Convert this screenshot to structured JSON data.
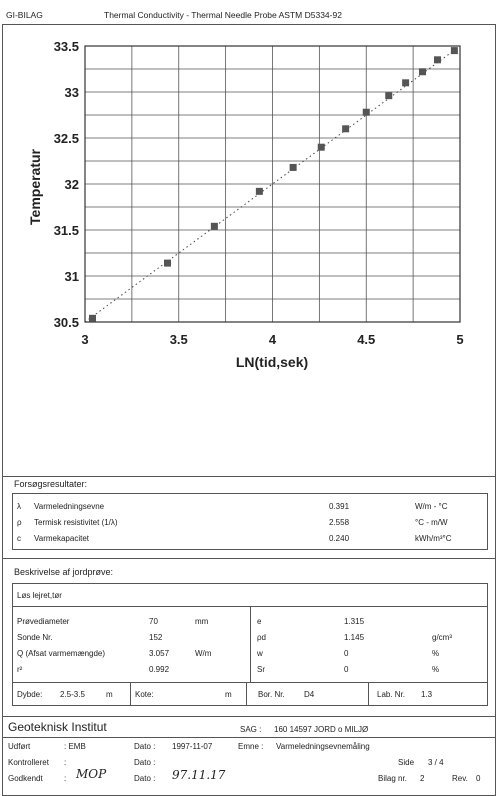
{
  "header": {
    "left": "GI-BILAG",
    "title": "Thermal Conductivity - Thermal Needle Probe ASTM D5334-92"
  },
  "chart_data": {
    "type": "scatter",
    "xlabel": "LN(tid,sek)",
    "ylabel": "Temperatur",
    "xlim": [
      3,
      5
    ],
    "ylim": [
      30.5,
      33.5
    ],
    "xticks": [
      "3",
      "3.5",
      "4",
      "4.5",
      "5"
    ],
    "yticks": [
      "30.5",
      "31",
      "31.5",
      "32",
      "32.5",
      "33",
      "33.5"
    ],
    "grid": true,
    "x": [
      3.04,
      3.44,
      3.69,
      3.93,
      4.11,
      4.26,
      4.39,
      4.5,
      4.62,
      4.71,
      4.8,
      4.88,
      4.97
    ],
    "y": [
      30.54,
      31.14,
      31.54,
      31.92,
      32.18,
      32.4,
      32.6,
      32.78,
      32.96,
      33.1,
      33.22,
      33.35,
      33.45
    ],
    "trendline": {
      "style": "dotted",
      "from": [
        3.0,
        30.5
      ],
      "to": [
        4.98,
        33.47
      ]
    }
  },
  "results": {
    "heading": "Forsøgsresultater:",
    "rows": [
      {
        "symbol": "λ",
        "label": "Varmeledningsevne",
        "value": "0.391",
        "unit": "W/m - °C"
      },
      {
        "symbol": "ρ",
        "label": "Termisk resistivitet (1/λ)",
        "value": "2.558",
        "unit": "°C - m/W"
      },
      {
        "symbol": "c",
        "label": "Varmekapacitet",
        "value": "0.240",
        "unit": "kWh/m³°C"
      }
    ]
  },
  "sample": {
    "heading": "Beskrivelse af jordprøve:",
    "description": "Løs lejret,tør",
    "left_rows": [
      {
        "label": "Prøvediameter",
        "value": "70",
        "unit": "mm"
      },
      {
        "label": "Sonde Nr.",
        "value": "152",
        "unit": ""
      },
      {
        "label": "Q (Afsat varmemængde)",
        "value": "3.057",
        "unit": "W/m"
      },
      {
        "label": "r²",
        "value": "0.992",
        "unit": ""
      }
    ],
    "right_rows": [
      {
        "label": "e",
        "value": "1.315",
        "unit": ""
      },
      {
        "label": "ρd",
        "value": "1.145",
        "unit": "g/cm³"
      },
      {
        "label": "w",
        "value": "0",
        "unit": "%"
      },
      {
        "label": "Sr",
        "value": "0",
        "unit": "%"
      }
    ],
    "footer": {
      "dybde_label": "Dybde:",
      "dybde_value": "2.5-3.5",
      "dybde_unit": "m",
      "kote_label": "Kote:",
      "kote_unit": "m",
      "bor_label": "Bor. Nr.",
      "bor_value": "D4",
      "lab_label": "Lab. Nr.",
      "lab_value": "1.3"
    }
  },
  "titleblock": {
    "institute": "Geoteknisk Institut",
    "sag_label": "SAG :",
    "sag_value": "160 14597 JORD o MILJØ",
    "udfort_label": "Udført",
    "udfort_value": ": EMB",
    "kontrolleret_label": "Kontrolleret",
    "kontrolleret_value": ":",
    "godkendt_label": "Godkendt",
    "godkendt_value": ":",
    "godkendt_sig": "MOP",
    "dato_label": "Dato :",
    "dato1": "1997-11-07",
    "dato3_sig": "97.11.17",
    "emne_label": "Emne :",
    "emne_value": "Varmeledningsevnemåling",
    "side_label": "Side",
    "side_value": "3 / 4",
    "bilag_label": "Bilag nr.",
    "bilag_value": "2",
    "rev_label": "Rev.",
    "rev_value": "0"
  }
}
